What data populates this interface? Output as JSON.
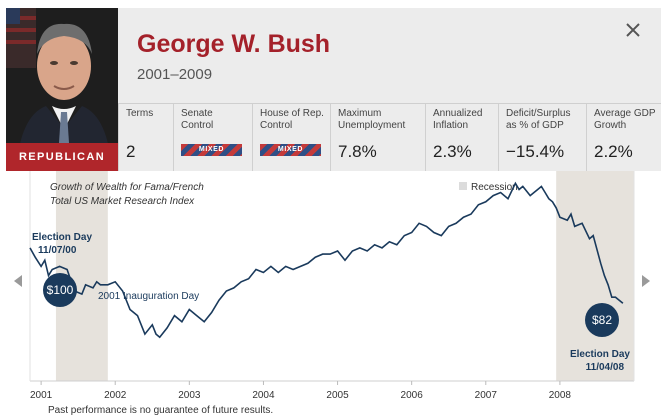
{
  "header": {
    "name": "George W. Bush",
    "years": "2001–2009",
    "party": "REPUBLICAN",
    "close_icon": "close-icon"
  },
  "stats": [
    {
      "label": "Terms",
      "value": "2"
    },
    {
      "label": "Senate\nControl",
      "badge": "MIXED"
    },
    {
      "label": "House of Rep.\nControl",
      "badge": "MIXED"
    },
    {
      "label": "Maximum\nUnemployment",
      "value": "7.8%"
    },
    {
      "label": "Annualized\nInflation",
      "value": "2.3%"
    },
    {
      "label": "Deficit/Surplus\nas % of GDP",
      "value": "−15.4%"
    },
    {
      "label": "Average GDP\nGrowth",
      "value": "2.2%"
    }
  ],
  "colors": {
    "accent_red": "#a4212a",
    "badge_red": "#b0262b",
    "line_navy": "#1a3a5c",
    "recession_gray": "#e6e2dc"
  },
  "footnote": "Past performance is no guarantee of future results.",
  "nav": {
    "prev_icon": "chevron-left-icon",
    "next_icon": "chevron-right-icon"
  },
  "chart_data": {
    "type": "line",
    "title_lines": [
      "Growth of Wealth for Fama/French",
      "Total US Market Research Index"
    ],
    "legend": "Recession",
    "xlim": [
      2000.85,
      2009.0
    ],
    "ylim": [
      60,
      125
    ],
    "x_ticks": [
      2001,
      2002,
      2003,
      2004,
      2005,
      2006,
      2007,
      2008
    ],
    "recessions": [
      [
        2001.2,
        2001.9
      ],
      [
        2007.95,
        2009.0
      ]
    ],
    "annotations": {
      "start_label": [
        "Election Day",
        "11/07/00"
      ],
      "start_value": "$100",
      "inauguration": "2001 Inauguration Day",
      "end_label": [
        "Election Day",
        "11/04/08"
      ],
      "end_value": "$82"
    },
    "series": [
      {
        "x": [
          2000.85,
          2000.92,
          2001.0,
          2001.05,
          2001.1,
          2001.15,
          2001.25,
          2001.35,
          2001.45,
          2001.55,
          2001.6,
          2001.7,
          2001.75,
          2001.8,
          2001.9,
          2002.0,
          2002.1,
          2002.2,
          2002.3,
          2002.4,
          2002.5,
          2002.55,
          2002.6,
          2002.7,
          2002.8,
          2002.9,
          2003.0,
          2003.1,
          2003.2,
          2003.3,
          2003.4,
          2003.5,
          2003.6,
          2003.7,
          2003.8,
          2003.9,
          2004.0,
          2004.1,
          2004.2,
          2004.3,
          2004.4,
          2004.5,
          2004.6,
          2004.7,
          2004.8,
          2004.9,
          2005.0,
          2005.1,
          2005.2,
          2005.3,
          2005.4,
          2005.5,
          2005.6,
          2005.7,
          2005.8,
          2005.9,
          2006.0,
          2006.1,
          2006.2,
          2006.3,
          2006.4,
          2006.5,
          2006.6,
          2006.7,
          2006.8,
          2006.9,
          2007.0,
          2007.1,
          2007.2,
          2007.3,
          2007.4,
          2007.45,
          2007.5,
          2007.6,
          2007.65,
          2007.7,
          2007.75,
          2007.8,
          2007.85,
          2007.9,
          2007.95,
          2008.0,
          2008.1,
          2008.15,
          2008.2,
          2008.3,
          2008.4,
          2008.45,
          2008.55,
          2008.6,
          2008.65,
          2008.7,
          2008.75,
          2008.8,
          2008.85
        ],
        "y": [
          100,
          97,
          94,
          96,
          91,
          93,
          94,
          93,
          86,
          85,
          88,
          87,
          89,
          88,
          88,
          89,
          86,
          80,
          78,
          72,
          75,
          72,
          71,
          74,
          78,
          76,
          80,
          78,
          76,
          79,
          83,
          86,
          87,
          89,
          90,
          93,
          92,
          94,
          92,
          94,
          93,
          94,
          95,
          97,
          98,
          98,
          99,
          96,
          99,
          100,
          99,
          101,
          100,
          102,
          101,
          104,
          105,
          108,
          107,
          105,
          104,
          107,
          108,
          110,
          111,
          114,
          115,
          117,
          118,
          116,
          121,
          119,
          120,
          117,
          118,
          119,
          120,
          118,
          116,
          115,
          113,
          110,
          109,
          111,
          107,
          108,
          103,
          104,
          95,
          91,
          88,
          84,
          84,
          83,
          82
        ]
      }
    ]
  }
}
